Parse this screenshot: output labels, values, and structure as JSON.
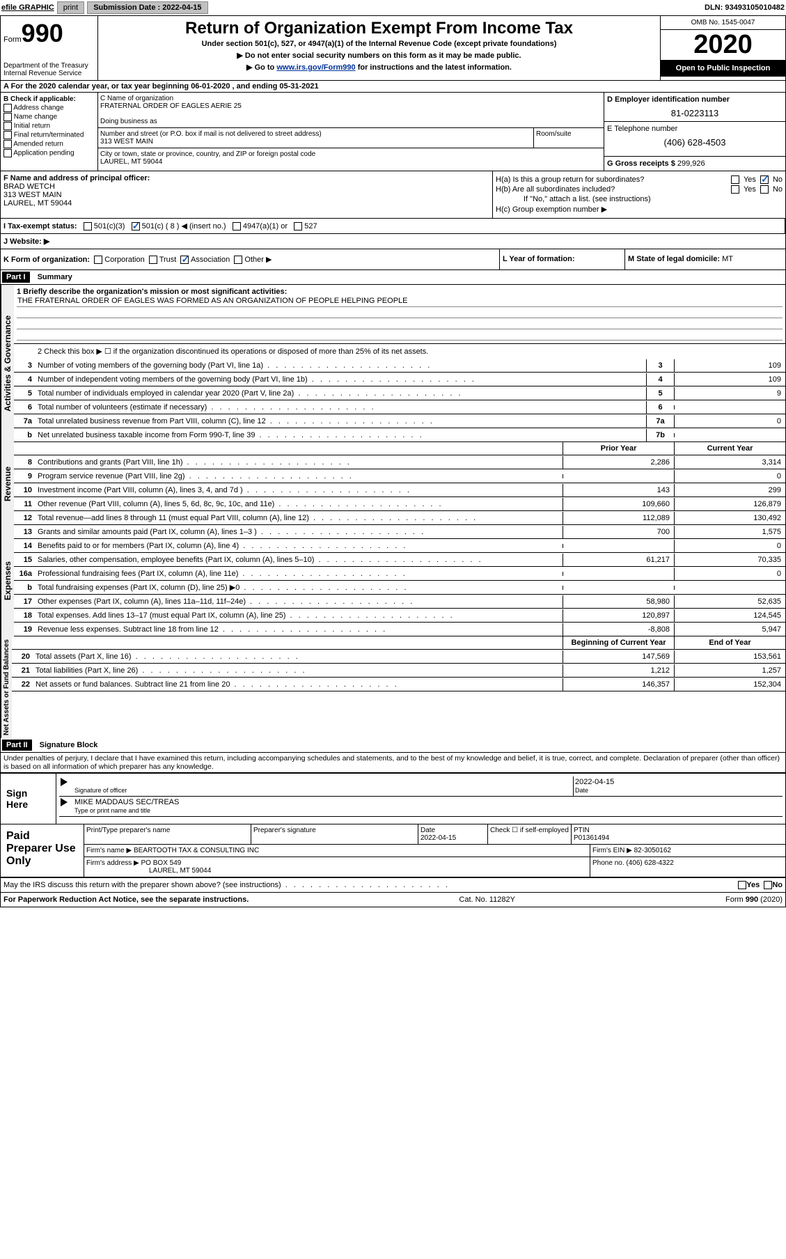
{
  "topbar": {
    "efile": "efile GRAPHIC",
    "print": "print",
    "sub_label": "Submission Date :",
    "sub_date": "2022-04-15",
    "dln": "DLN: 93493105010482"
  },
  "header": {
    "form_prefix": "Form",
    "form_num": "990",
    "dept": "Department of the Treasury\nInternal Revenue Service",
    "title": "Return of Organization Exempt From Income Tax",
    "subtitle": "Under section 501(c), 527, or 4947(a)(1) of the Internal Revenue Code (except private foundations)",
    "instr1": "▶ Do not enter social security numbers on this form as it may be made public.",
    "instr2_prefix": "▶ Go to ",
    "instr2_link": "www.irs.gov/Form990",
    "instr2_suffix": " for instructions and the latest information.",
    "omb": "OMB No. 1545-0047",
    "year": "2020",
    "inspection": "Open to Public Inspection"
  },
  "row_a": "A For the 2020 calendar year, or tax year beginning 06-01-2020   , and ending 05-31-2021",
  "section_b": {
    "label": "B Check if applicable:",
    "opts": [
      "Address change",
      "Name change",
      "Initial return",
      "Final return/terminated",
      "Amended return",
      "Application pending"
    ]
  },
  "section_c": {
    "name_label": "C Name of organization",
    "name": "FRATERNAL ORDER OF EAGLES AERIE 25",
    "dba_label": "Doing business as",
    "dba": "",
    "street_label": "Number and street (or P.O. box if mail is not delivered to street address)",
    "street": "313 WEST MAIN",
    "suite_label": "Room/suite",
    "city_label": "City or town, state or province, country, and ZIP or foreign postal code",
    "city": "LAUREL, MT  59044"
  },
  "section_d": {
    "label": "D Employer identification number",
    "value": "81-0223113"
  },
  "section_e": {
    "label": "E Telephone number",
    "value": "(406) 628-4503"
  },
  "section_g": {
    "label": "G Gross receipts $",
    "value": "299,926"
  },
  "section_f": {
    "label": "F Name and address of principal officer:",
    "name": "BRAD WETCH",
    "street": "313 WEST MAIN",
    "city": "LAUREL, MT  59044"
  },
  "section_h": {
    "ha": "H(a)  Is this a group return for subordinates?",
    "hb": "H(b)  Are all subordinates included?",
    "hb_note": "If \"No,\" attach a list. (see instructions)",
    "hc": "H(c)  Group exemption number ▶",
    "yes": "Yes",
    "no": "No"
  },
  "section_i": {
    "label": "I  Tax-exempt status:",
    "o1": "501(c)(3)",
    "o2": "501(c) ( 8 ) ◀ (insert no.)",
    "o3": "4947(a)(1) or",
    "o4": "527"
  },
  "section_j": {
    "label": "J  Website: ▶"
  },
  "section_k": {
    "label": "K Form of organization:",
    "o1": "Corporation",
    "o2": "Trust",
    "o3": "Association",
    "o4": "Other ▶"
  },
  "section_l": {
    "label": "L Year of formation:",
    "value": ""
  },
  "section_m": {
    "label": "M State of legal domicile:",
    "value": "MT"
  },
  "part1": {
    "header": "Part I",
    "title": "Summary",
    "vert1": "Activities & Governance",
    "vert2": "Revenue",
    "vert3": "Expenses",
    "vert4": "Net Assets or Fund Balances",
    "line1_label": "1  Briefly describe the organization's mission or most significant activities:",
    "line1_text": "THE FRATERNAL ORDER OF EAGLES WAS FORMED AS AN ORGANIZATION OF PEOPLE HELPING PEOPLE",
    "line2": "2   Check this box ▶ ☐  if the organization discontinued its operations or disposed of more than 25% of its net assets.",
    "hdr_prior": "Prior Year",
    "hdr_current": "Current Year",
    "hdr_boy": "Beginning of Current Year",
    "hdr_eoy": "End of Year",
    "rows_gov": [
      {
        "n": "3",
        "t": "Number of voting members of the governing body (Part VI, line 1a)",
        "k": "3",
        "v": "109"
      },
      {
        "n": "4",
        "t": "Number of independent voting members of the governing body (Part VI, line 1b)",
        "k": "4",
        "v": "109"
      },
      {
        "n": "5",
        "t": "Total number of individuals employed in calendar year 2020 (Part V, line 2a)",
        "k": "5",
        "v": "9"
      },
      {
        "n": "6",
        "t": "Total number of volunteers (estimate if necessary)",
        "k": "6",
        "v": ""
      },
      {
        "n": "7a",
        "t": "Total unrelated business revenue from Part VIII, column (C), line 12",
        "k": "7a",
        "v": "0"
      },
      {
        "n": "b",
        "t": "Net unrelated business taxable income from Form 990-T, line 39",
        "k": "7b",
        "v": ""
      }
    ],
    "rows_rev": [
      {
        "n": "8",
        "t": "Contributions and grants (Part VIII, line 1h)",
        "p": "2,286",
        "c": "3,314"
      },
      {
        "n": "9",
        "t": "Program service revenue (Part VIII, line 2g)",
        "p": "",
        "c": "0"
      },
      {
        "n": "10",
        "t": "Investment income (Part VIII, column (A), lines 3, 4, and 7d )",
        "p": "143",
        "c": "299"
      },
      {
        "n": "11",
        "t": "Other revenue (Part VIII, column (A), lines 5, 6d, 8c, 9c, 10c, and 11e)",
        "p": "109,660",
        "c": "126,879"
      },
      {
        "n": "12",
        "t": "Total revenue—add lines 8 through 11 (must equal Part VIII, column (A), line 12)",
        "p": "112,089",
        "c": "130,492"
      }
    ],
    "rows_exp": [
      {
        "n": "13",
        "t": "Grants and similar amounts paid (Part IX, column (A), lines 1–3 )",
        "p": "700",
        "c": "1,575"
      },
      {
        "n": "14",
        "t": "Benefits paid to or for members (Part IX, column (A), line 4)",
        "p": "",
        "c": "0"
      },
      {
        "n": "15",
        "t": "Salaries, other compensation, employee benefits (Part IX, column (A), lines 5–10)",
        "p": "61,217",
        "c": "70,335"
      },
      {
        "n": "16a",
        "t": "Professional fundraising fees (Part IX, column (A), line 11e)",
        "p": "",
        "c": "0"
      },
      {
        "n": "b",
        "t": "Total fundraising expenses (Part IX, column (D), line 25) ▶0",
        "p": "",
        "c": ""
      },
      {
        "n": "17",
        "t": "Other expenses (Part IX, column (A), lines 11a–11d, 11f–24e)",
        "p": "58,980",
        "c": "52,635"
      },
      {
        "n": "18",
        "t": "Total expenses. Add lines 13–17 (must equal Part IX, column (A), line 25)",
        "p": "120,897",
        "c": "124,545"
      },
      {
        "n": "19",
        "t": "Revenue less expenses. Subtract line 18 from line 12",
        "p": "-8,808",
        "c": "5,947"
      }
    ],
    "rows_net": [
      {
        "n": "20",
        "t": "Total assets (Part X, line 16)",
        "p": "147,569",
        "c": "153,561"
      },
      {
        "n": "21",
        "t": "Total liabilities (Part X, line 26)",
        "p": "1,212",
        "c": "1,257"
      },
      {
        "n": "22",
        "t": "Net assets or fund balances. Subtract line 21 from line 20",
        "p": "146,357",
        "c": "152,304"
      }
    ]
  },
  "part2": {
    "header": "Part II",
    "title": "Signature Block",
    "declaration": "Under penalties of perjury, I declare that I have examined this return, including accompanying schedules and statements, and to the best of my knowledge and belief, it is true, correct, and complete. Declaration of preparer (other than officer) is based on all information of which preparer has any knowledge."
  },
  "sign": {
    "label": "Sign Here",
    "sig_of_officer": "Signature of officer",
    "date": "2022-04-15",
    "date_label": "Date",
    "name": "MIKE MADDAUS  SEC/TREAS",
    "name_label": "Type or print name and title"
  },
  "preparer": {
    "label": "Paid Preparer Use Only",
    "print_name_label": "Print/Type preparer's name",
    "sig_label": "Preparer's signature",
    "date_label": "Date",
    "date": "2022-04-15",
    "check_label": "Check ☐ if self-employed",
    "ptin_label": "PTIN",
    "ptin": "P01361494",
    "firm_name_label": "Firm's name    ▶",
    "firm_name": "BEARTOOTH TAX & CONSULTING INC",
    "firm_ein_label": "Firm's EIN ▶",
    "firm_ein": "82-3050162",
    "firm_addr_label": "Firm's address ▶",
    "firm_addr1": "PO BOX 549",
    "firm_addr2": "LAUREL, MT  59044",
    "phone_label": "Phone no.",
    "phone": "(406) 628-4322",
    "discuss": "May the IRS discuss this return with the preparer shown above? (see instructions)",
    "yes": "Yes",
    "no": "No"
  },
  "footer": {
    "left": "For Paperwork Reduction Act Notice, see the separate instructions.",
    "mid": "Cat. No. 11282Y",
    "right": "Form 990 (2020)"
  }
}
